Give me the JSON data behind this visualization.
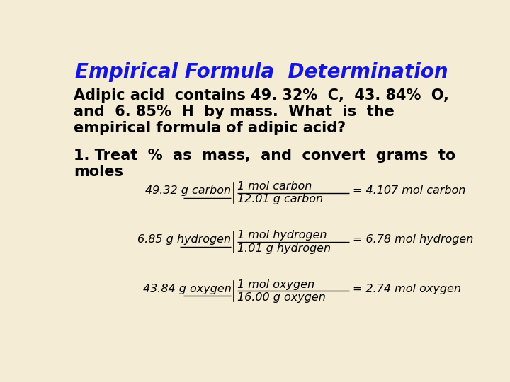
{
  "title": "Empirical Formula  Determination",
  "title_color": "#1515e0",
  "background_color": "#f5ecd5",
  "body_text_color": "#000000",
  "eq1_left": "49.32 g carbon",
  "eq1_num": "1 mol carbon",
  "eq1_den": "12.01 g carbon",
  "eq1_right": "= 4.107 mol carbon",
  "eq2_left": "6.85 g hydrogen",
  "eq2_num": "1 mol hydrogen",
  "eq2_den": "1.01 g hydrogen",
  "eq2_right": "= 6.78 mol hydrogen",
  "eq3_left": "43.84 g oxygen",
  "eq3_num": "1 mol oxygen",
  "eq3_den": "16.00 g oxygen",
  "eq3_right": "= 2.74 mol oxygen",
  "title_fontsize": 20,
  "body_fontsize": 15,
  "eq_fontsize": 11.5
}
